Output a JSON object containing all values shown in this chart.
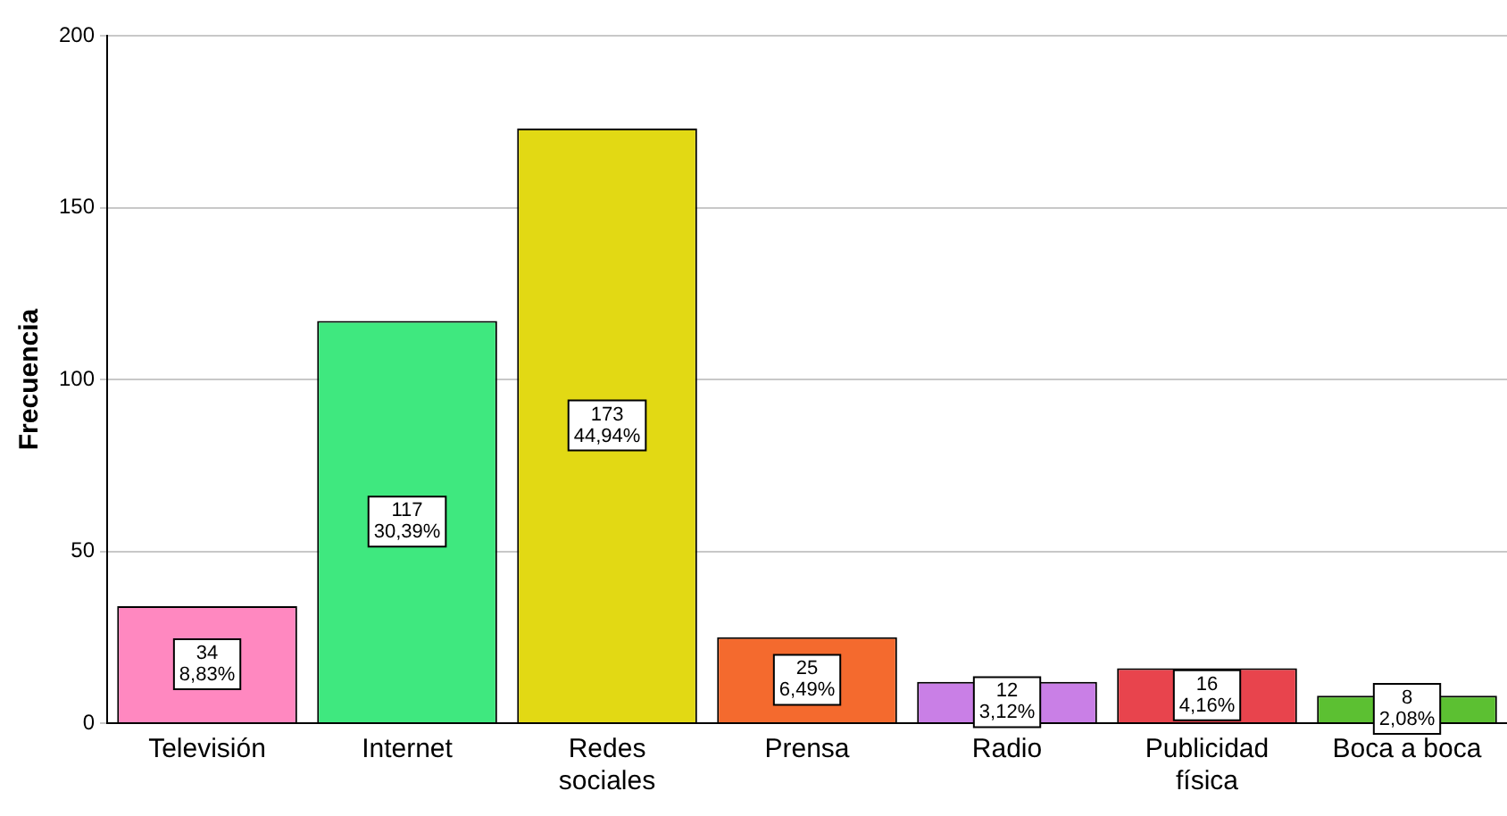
{
  "chart_data": {
    "type": "bar",
    "ylabel": "Frecuencia",
    "categories": [
      "Televisión",
      "Internet",
      "Redes\nsociales",
      "Prensa",
      "Radio",
      "Publicidad\nfísica",
      "Boca a boca"
    ],
    "values": [
      34,
      117,
      173,
      25,
      12,
      16,
      8
    ],
    "colors": [
      "#ff88c0",
      "#3fe87f",
      "#e2d914",
      "#f46a2e",
      "#c97fe6",
      "#e8444d",
      "#5cc032"
    ],
    "value_labels": [
      "34\n8,83%",
      "117\n30,39%",
      "173\n44,94%",
      "25\n6,49%",
      "12\n3,12%",
      "16\n4,16%",
      "8\n2,08%"
    ],
    "ylim": [
      0,
      200
    ],
    "yticks": [
      0,
      50,
      100,
      150,
      200
    ],
    "grid": "y",
    "legend": false
  }
}
